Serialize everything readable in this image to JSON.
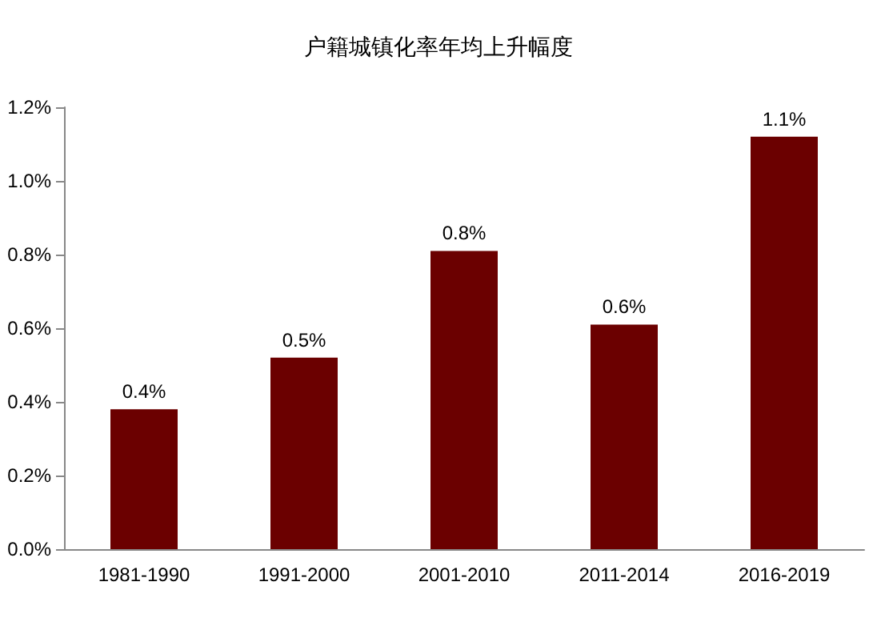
{
  "chart_data": {
    "type": "bar",
    "title": "户籍城镇化率年均上升幅度",
    "categories": [
      "1981-1990",
      "1991-2000",
      "2001-2010",
      "2011-2014",
      "2016-2019"
    ],
    "values": [
      0.38,
      0.52,
      0.81,
      0.61,
      1.12
    ],
    "value_labels": [
      "0.4%",
      "0.5%",
      "0.8%",
      "0.6%",
      "1.1%"
    ],
    "color": "#6b0000",
    "ylim": [
      0,
      1.2
    ],
    "yticks": [
      {
        "value": 0,
        "label": "0.0%"
      },
      {
        "value": 0.2,
        "label": "0.2%"
      },
      {
        "value": 0.4,
        "label": "0.4%"
      },
      {
        "value": 0.6,
        "label": "0.6%"
      },
      {
        "value": 0.8,
        "label": "0.8%"
      },
      {
        "value": 1.0,
        "label": "1.0%"
      },
      {
        "value": 1.2,
        "label": "1.2%"
      }
    ],
    "grid": false
  }
}
